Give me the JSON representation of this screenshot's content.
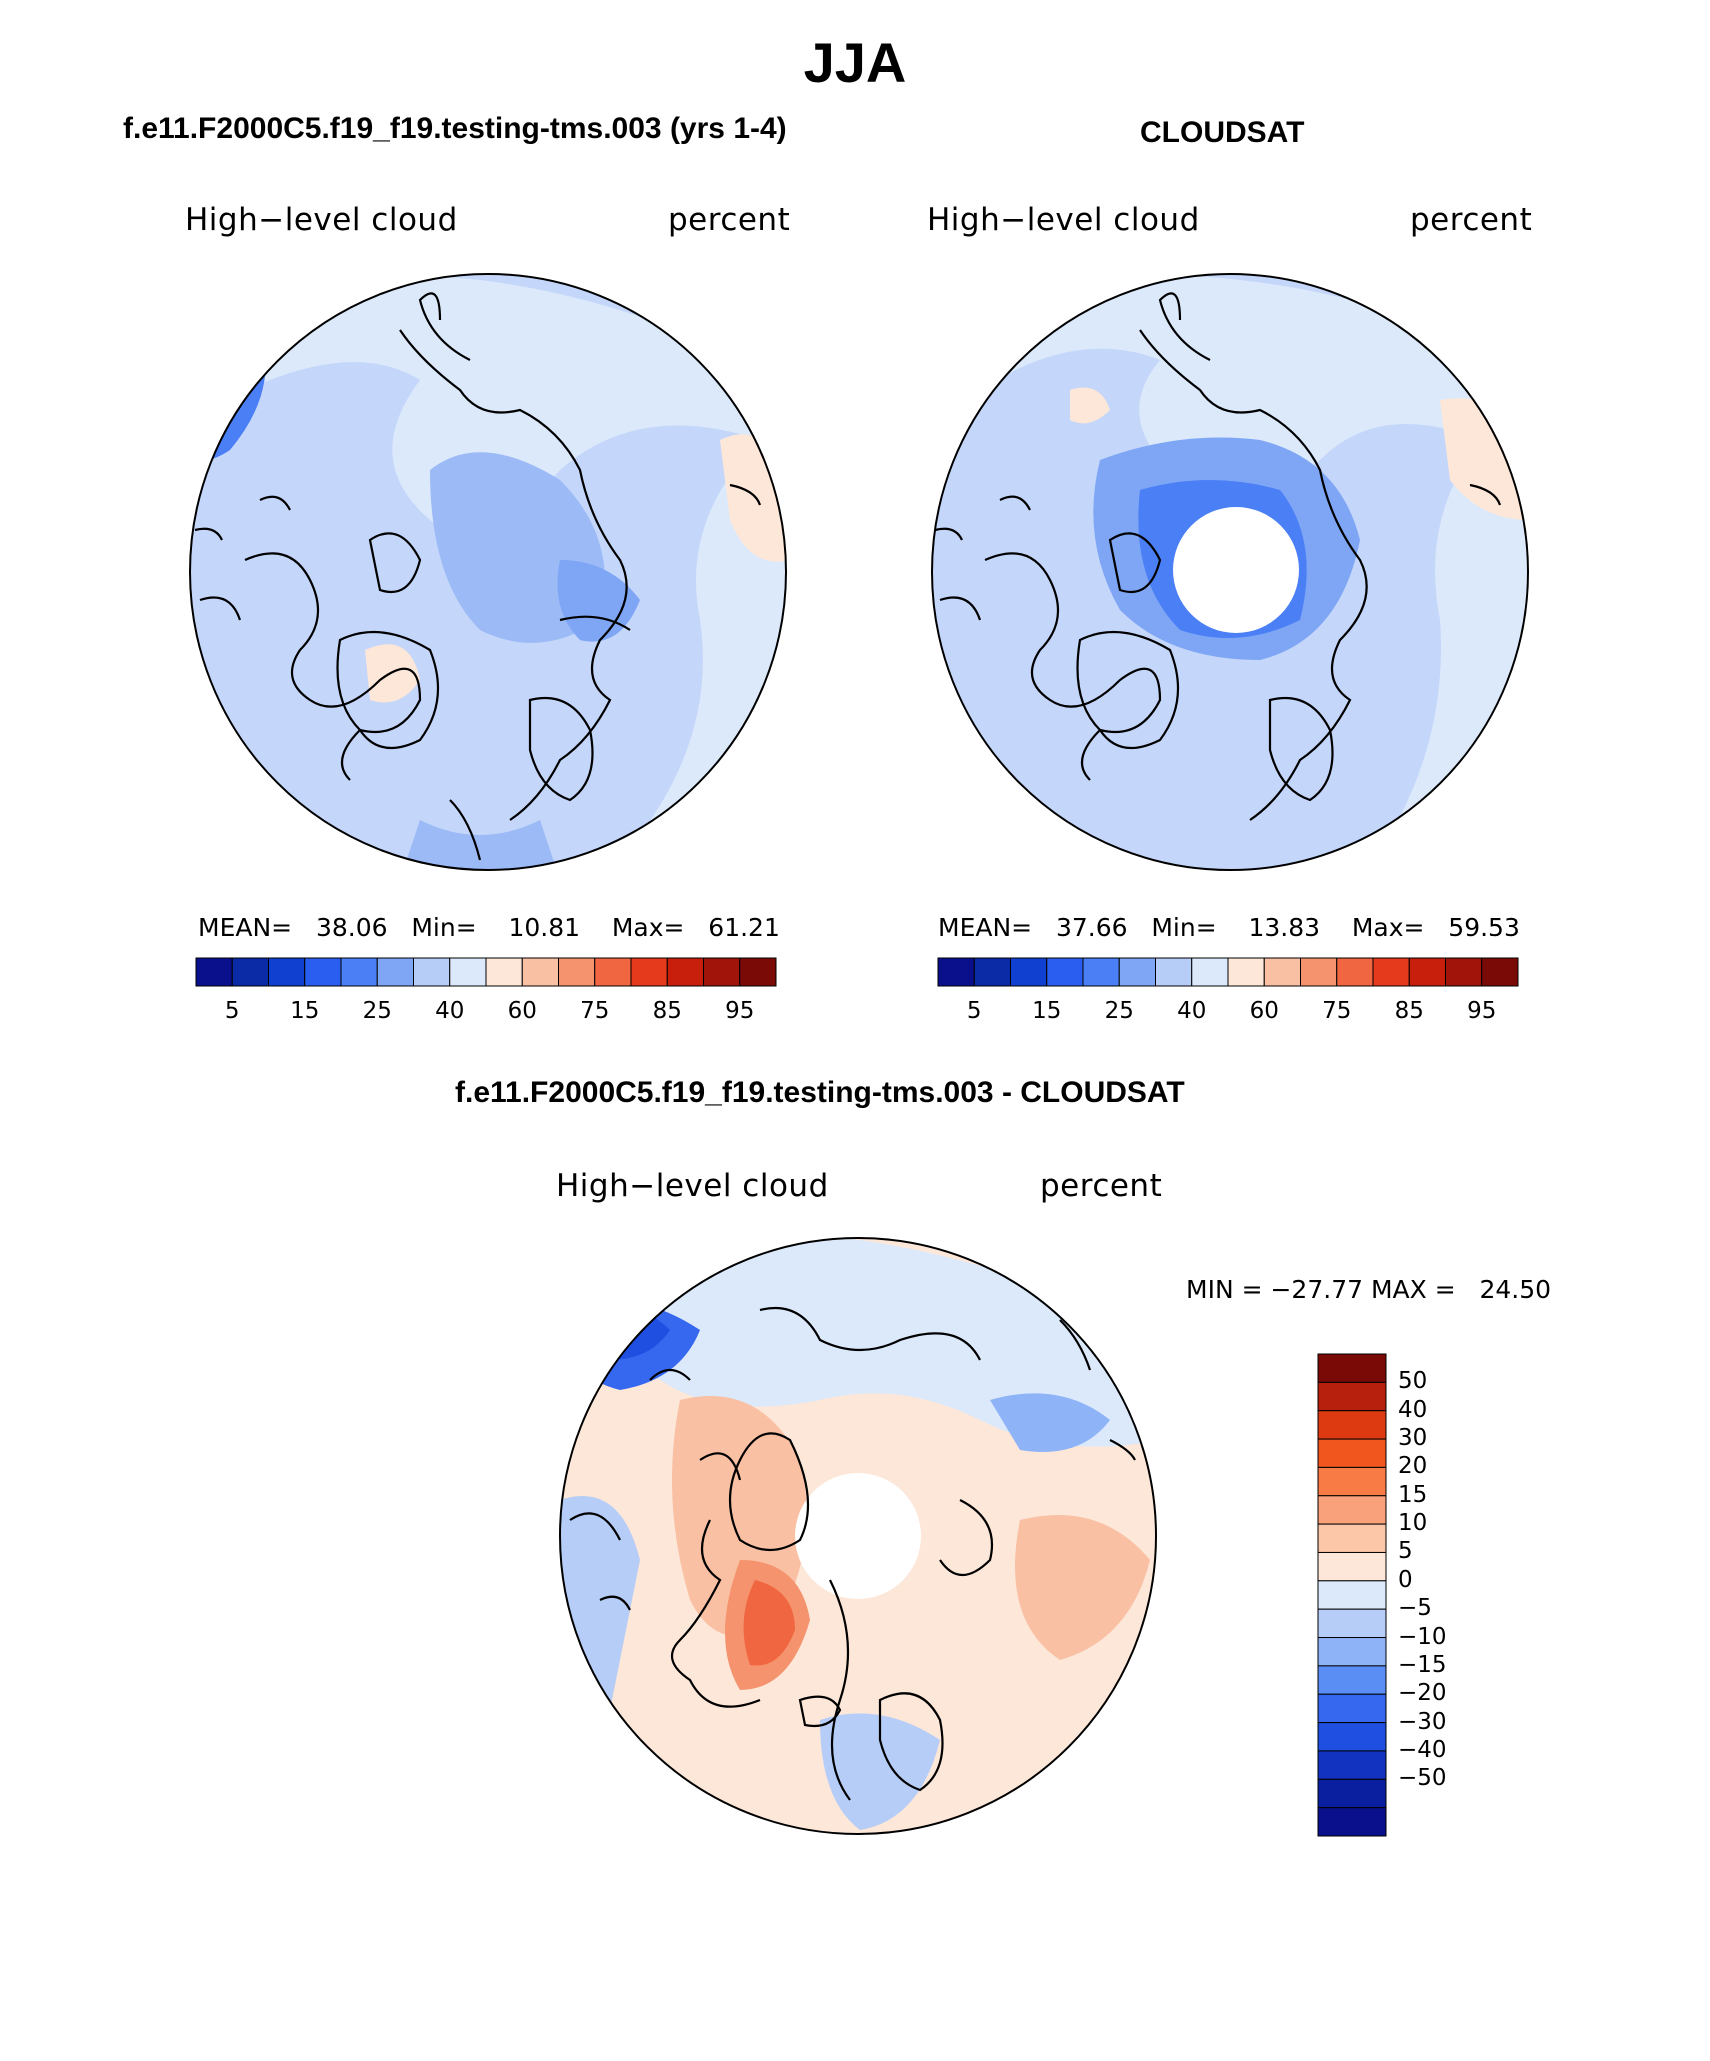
{
  "figure": {
    "title": "JJA",
    "top_left": {
      "header": "f.e11.F2000C5.f19_f19.testing-tms.003 (yrs 1-4)",
      "variable_label": "High−level cloud",
      "units_label": "percent",
      "stats": "MEAN=   38.06   Min=    10.81    Max=   61.21"
    },
    "top_right": {
      "header": "CLOUDSAT",
      "variable_label": "High−level cloud",
      "units_label": "percent",
      "stats": "MEAN=   37.66   Min=    13.83    Max=   59.53"
    },
    "bottom": {
      "header": "f.e11.F2000C5.f19_f19.testing-tms.003 - CLOUDSAT",
      "variable_label": "High−level cloud",
      "units_label": "percent",
      "minmax": "MIN = −27.77 MAX =   24.50"
    }
  },
  "colorbar_horizontal": {
    "colors": [
      "#0a0f8c",
      "#0b2aa6",
      "#1040d0",
      "#2a5ef0",
      "#4b7ff5",
      "#7ea6f5",
      "#b6cdf7",
      "#dbe9fb",
      "#fde7d9",
      "#f9c0a4",
      "#f4936d",
      "#ef6640",
      "#e53a1b",
      "#c81e0c",
      "#a0140a",
      "#7a0a06"
    ],
    "labels": [
      "5",
      "15",
      "25",
      "40",
      "60",
      "75",
      "85",
      "95"
    ]
  },
  "colorbar_vertical": {
    "colors": [
      "#7a0a06",
      "#b8200e",
      "#dd3a12",
      "#f0561e",
      "#f87a45",
      "#f9a17a",
      "#fcc6a8",
      "#fde7d9",
      "#dbe9fb",
      "#b6cdf7",
      "#8fb3f7",
      "#5a8ef4",
      "#3568ee",
      "#1f4fe0",
      "#1233c0",
      "#0a1fa0",
      "#0a0f8c"
    ],
    "labels": [
      "50",
      "40",
      "30",
      "20",
      "15",
      "10",
      "5",
      "0",
      "−5",
      "−10",
      "−15",
      "−20",
      "−30",
      "−40",
      "−50"
    ]
  },
  "map_colors": {
    "model_base": "#c4d6fa",
    "model_ocean": "#dbe9fb",
    "obs_base": "#c4d6fa",
    "obs_ocean": "#dbe9fb",
    "diff_base": "#fde7d9",
    "coast": "#000000"
  }
}
